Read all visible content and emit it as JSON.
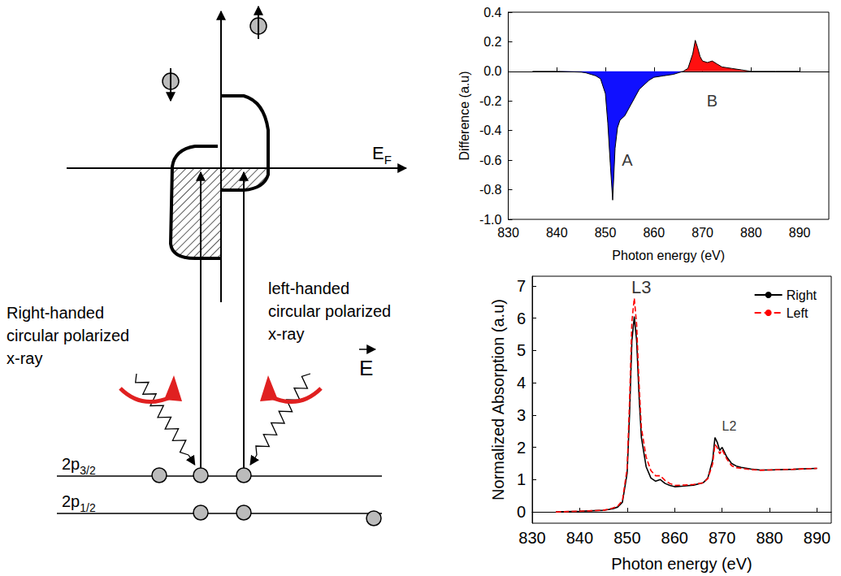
{
  "diagram": {
    "fermi_level": {
      "text": "E",
      "subscript": "F"
    },
    "right_handed_label": {
      "lines": [
        "Right-handed",
        "circular polarized",
        "x-ray"
      ]
    },
    "left_handed_label": {
      "lines": [
        "left-handed",
        "circular polarized",
        "x-ray"
      ]
    },
    "levels": [
      {
        "text": "2p",
        "subscript": "3/2"
      },
      {
        "text": "2p",
        "subscript": "1/2"
      }
    ],
    "field": {
      "text": "E",
      "vector": true
    }
  },
  "chart_data": [
    {
      "type": "line",
      "xlabel": "Photon energy (eV)",
      "ylabel": "Difference (a.u)",
      "x": [
        835,
        840,
        845,
        846,
        847,
        848,
        849,
        850,
        850.5,
        851,
        851.5,
        852,
        852.5,
        853,
        854,
        855,
        856,
        857,
        858,
        859,
        860,
        862,
        864,
        866,
        867,
        868,
        868.5,
        869,
        869.5,
        870,
        871,
        872,
        873,
        874,
        876,
        878,
        880,
        885,
        890
      ],
      "series": [
        {
          "color": "#1010ff",
          "values": [
            0,
            0,
            -0.005,
            -0.01,
            -0.02,
            -0.03,
            -0.05,
            -0.15,
            -0.35,
            -0.62,
            -0.87,
            -0.52,
            -0.38,
            -0.33,
            -0.3,
            -0.24,
            -0.18,
            -0.12,
            -0.09,
            -0.06,
            -0.04,
            -0.03,
            -0.02,
            0,
            null,
            null,
            null,
            null,
            null,
            null,
            null,
            null,
            null,
            null,
            null,
            null,
            null,
            null,
            null
          ]
        },
        {
          "color": "#ff1010",
          "values": [
            null,
            null,
            null,
            null,
            null,
            null,
            null,
            null,
            null,
            null,
            null,
            null,
            null,
            null,
            null,
            null,
            null,
            null,
            null,
            null,
            null,
            null,
            null,
            0,
            0.02,
            0.12,
            0.21,
            0.16,
            0.1,
            0.07,
            0.06,
            0.07,
            0.05,
            0.03,
            0.02,
            0.01,
            0,
            0,
            0
          ]
        }
      ],
      "xlim": [
        830,
        896
      ],
      "ylim": [
        -1,
        0.4
      ],
      "xticks": [
        830,
        840,
        850,
        860,
        870,
        880,
        890
      ],
      "yticks": [
        {
          "value": -1,
          "label": "-1.0"
        },
        -0.8,
        -0.6,
        -0.4,
        -0.2,
        {
          "value": 0,
          "label": "0.0"
        },
        0.2,
        0.4
      ],
      "annotations": [
        {
          "text": "A",
          "x": 854.5,
          "y": -0.6
        },
        {
          "text": "B",
          "x": 872,
          "y": -0.2
        }
      ]
    },
    {
      "type": "line",
      "xlabel": "Photon energy (eV)",
      "ylabel": "Normalized Absorption (a.u)",
      "x": [
        835,
        840,
        845,
        846,
        847,
        848,
        849,
        850,
        850.5,
        851,
        851.5,
        852,
        852.5,
        853,
        854,
        855,
        856,
        857,
        858,
        859,
        860,
        862,
        864,
        866,
        867,
        868,
        868.5,
        869,
        869.5,
        870,
        871,
        872,
        873,
        874,
        876,
        878,
        880,
        885,
        890
      ],
      "series": [
        {
          "name": "Right",
          "color": "#000000",
          "line_style": "solid",
          "values": [
            0,
            0.02,
            0.05,
            0.07,
            0.1,
            0.15,
            0.3,
            1.2,
            3.0,
            5.3,
            6.05,
            5.3,
            3.6,
            2.3,
            1.4,
            1.05,
            0.95,
            1.0,
            0.88,
            0.82,
            0.78,
            0.8,
            0.83,
            0.9,
            1.05,
            1.6,
            2.3,
            2.15,
            1.9,
            2.0,
            1.7,
            1.5,
            1.42,
            1.38,
            1.33,
            1.3,
            1.3,
            1.32,
            1.35
          ]
        },
        {
          "name": "Left",
          "color": "#ff0000",
          "line_style": "dashed",
          "values": [
            0,
            0.02,
            0.05,
            0.08,
            0.12,
            0.18,
            0.35,
            1.35,
            3.4,
            5.9,
            6.62,
            5.8,
            4.0,
            2.6,
            1.7,
            1.28,
            1.12,
            1.12,
            0.97,
            0.88,
            0.82,
            0.83,
            0.85,
            0.9,
            1.03,
            1.48,
            2.09,
            1.99,
            1.8,
            1.93,
            1.64,
            1.43,
            1.37,
            1.35,
            1.31,
            1.29,
            1.3,
            1.32,
            1.35
          ]
        }
      ],
      "xlim": [
        830,
        893
      ],
      "ylim": [
        -0.35,
        7.3
      ],
      "xticks": [
        830,
        840,
        850,
        860,
        870,
        880,
        890
      ],
      "yticks": [
        0,
        1,
        2,
        3,
        4,
        5,
        6,
        7
      ],
      "legend": "upper right",
      "annotations": [
        {
          "text": "L3",
          "x": 853,
          "y": 6.95
        },
        {
          "text": "L2",
          "x": 871.5,
          "y": 2.65
        }
      ]
    }
  ]
}
